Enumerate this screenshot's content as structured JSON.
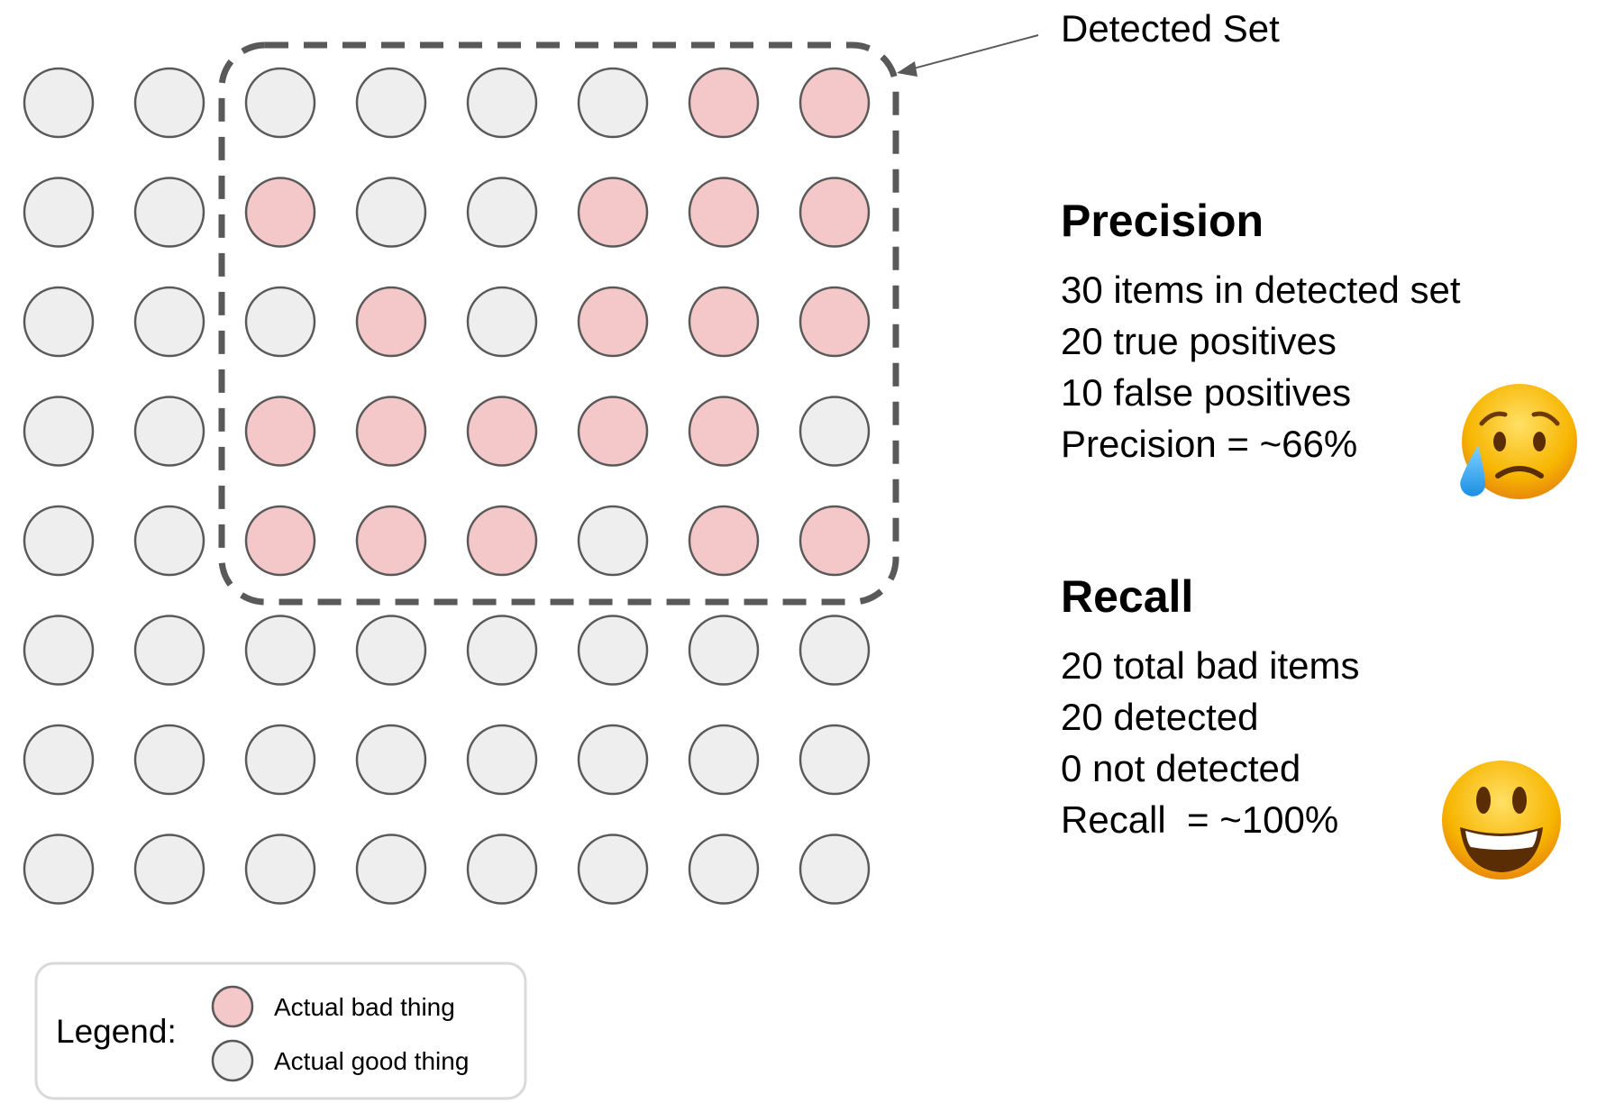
{
  "colors": {
    "bad": "#f4c7c8",
    "good": "#eeeeee",
    "stroke": "#595959",
    "dashed_box": "#595959",
    "precision_result": "#cc0000",
    "recall_result": "#38761d"
  },
  "grid": {
    "rows": 8,
    "cols": 8,
    "cells": [
      [
        "good",
        "good",
        "good",
        "good",
        "good",
        "good",
        "bad",
        "bad"
      ],
      [
        "good",
        "good",
        "bad",
        "good",
        "good",
        "bad",
        "bad",
        "bad"
      ],
      [
        "good",
        "good",
        "good",
        "bad",
        "good",
        "bad",
        "bad",
        "bad"
      ],
      [
        "good",
        "good",
        "bad",
        "bad",
        "bad",
        "bad",
        "bad",
        "good"
      ],
      [
        "good",
        "good",
        "bad",
        "bad",
        "bad",
        "good",
        "bad",
        "bad"
      ],
      [
        "good",
        "good",
        "good",
        "good",
        "good",
        "good",
        "good",
        "good"
      ],
      [
        "good",
        "good",
        "good",
        "good",
        "good",
        "good",
        "good",
        "good"
      ],
      [
        "good",
        "good",
        "good",
        "good",
        "good",
        "good",
        "good",
        "good"
      ]
    ]
  },
  "detected_set": {
    "label": "Detected Set"
  },
  "precision": {
    "title": "Precision",
    "lines": [
      "30 items in detected set",
      "20 true positives",
      "10 false positives"
    ],
    "result": "Precision = ~66%",
    "emoji": "crying-face-icon"
  },
  "recall": {
    "title": "Recall",
    "lines": [
      "20 total bad items",
      "20 detected",
      "0 not detected"
    ],
    "result": "Recall  = ~100%",
    "emoji": "grinning-face-icon"
  },
  "legend": {
    "title": "Legend:",
    "items": [
      {
        "label": "Actual bad thing",
        "kind": "bad"
      },
      {
        "label": "Actual good thing",
        "kind": "good"
      }
    ]
  }
}
